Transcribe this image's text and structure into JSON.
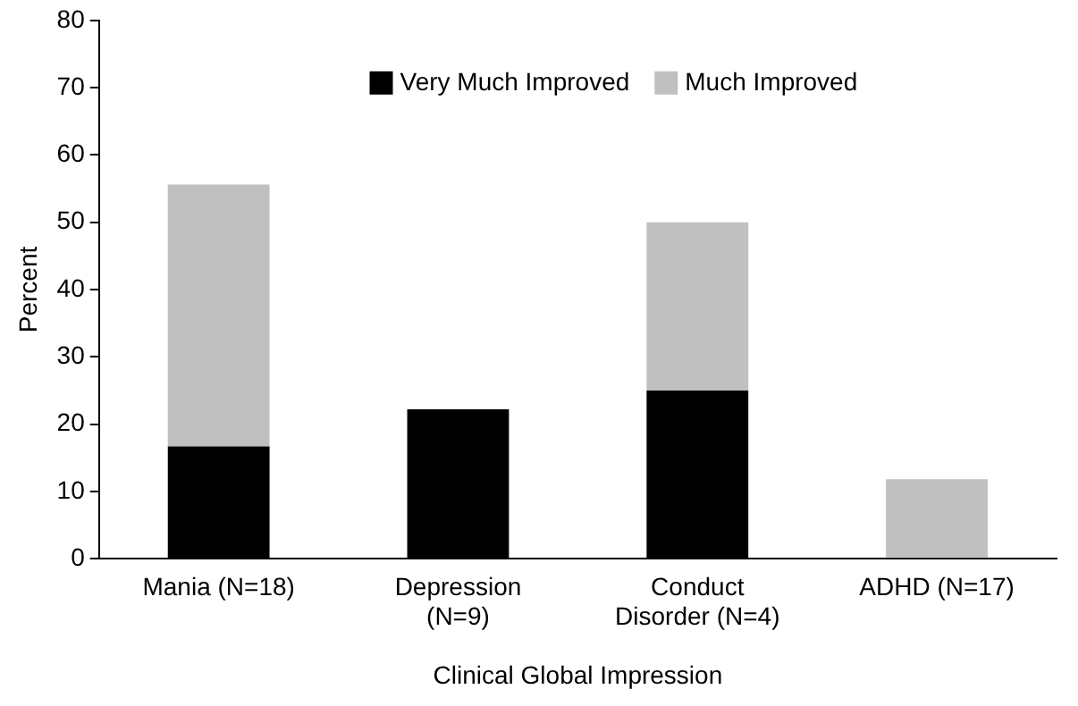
{
  "chart_data": {
    "type": "bar",
    "stacked": true,
    "xlabel": "Clinical Global Impression",
    "ylabel": "Percent",
    "categories": [
      "Mania (N=18)",
      "Depression (N=9)",
      "Conduct Disorder (N=4)",
      "ADHD (N=17)"
    ],
    "series": [
      {
        "name": "Very Much Improved",
        "color": "#000000",
        "values": [
          16.7,
          22.2,
          25,
          0
        ]
      },
      {
        "name": "Much Improved",
        "color": "#c0c0c0",
        "values": [
          38.9,
          0,
          25,
          11.8
        ]
      }
    ],
    "ylim": [
      0,
      80
    ],
    "yticks": [
      0,
      10,
      20,
      30,
      40,
      50,
      60,
      70,
      80
    ],
    "grid": false,
    "legend": "top"
  }
}
